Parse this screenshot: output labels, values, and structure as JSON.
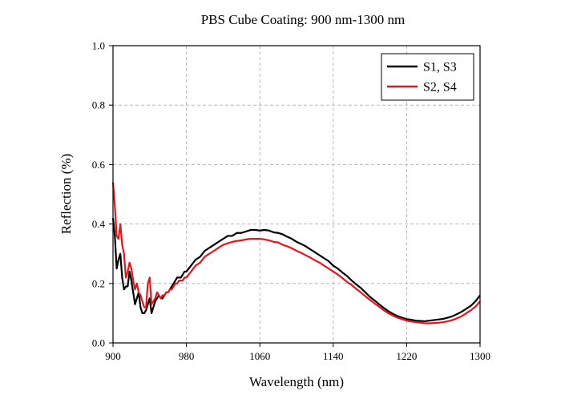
{
  "chart_data": {
    "type": "line",
    "title": "PBS Cube Coating: 900 nm-1300 nm",
    "xlabel": "Wavelength (nm)",
    "ylabel": "Reflection (%)",
    "xlim": [
      900,
      1300
    ],
    "ylim": [
      0,
      1.0
    ],
    "xticks": [
      900,
      980,
      1060,
      1140,
      1220,
      1300
    ],
    "xtick_labels": [
      "900",
      "980",
      "1060",
      "1140",
      "1220",
      "1300"
    ],
    "yticks": [
      0,
      0.2,
      0.4,
      0.6,
      0.8,
      1.0
    ],
    "ytick_labels": [
      "0.0",
      "0.2",
      "0.4",
      "0.6",
      "0.8",
      "1.0"
    ],
    "grid": true,
    "legend_position": "top-right",
    "series": [
      {
        "name": "S1, S3",
        "color": "#000000",
        "x": [
          900,
          902,
          904,
          906,
          908,
          910,
          912,
          914,
          916,
          918,
          920,
          922,
          924,
          926,
          928,
          930,
          932,
          934,
          936,
          938,
          940,
          942,
          944,
          946,
          948,
          950,
          952,
          954,
          956,
          958,
          960,
          962,
          964,
          966,
          968,
          970,
          972,
          974,
          976,
          978,
          980,
          985,
          990,
          995,
          1000,
          1005,
          1010,
          1015,
          1020,
          1025,
          1030,
          1035,
          1040,
          1045,
          1050,
          1055,
          1060,
          1065,
          1070,
          1075,
          1080,
          1085,
          1090,
          1095,
          1100,
          1105,
          1110,
          1115,
          1120,
          1125,
          1130,
          1135,
          1140,
          1145,
          1150,
          1155,
          1160,
          1165,
          1170,
          1175,
          1180,
          1185,
          1190,
          1195,
          1200,
          1205,
          1210,
          1215,
          1220,
          1225,
          1230,
          1235,
          1240,
          1245,
          1250,
          1255,
          1260,
          1265,
          1270,
          1275,
          1280,
          1285,
          1290,
          1295,
          1300
        ],
        "values": [
          0.42,
          0.36,
          0.25,
          0.28,
          0.3,
          0.22,
          0.18,
          0.19,
          0.19,
          0.24,
          0.21,
          0.17,
          0.13,
          0.15,
          0.17,
          0.12,
          0.1,
          0.1,
          0.11,
          0.13,
          0.15,
          0.1,
          0.12,
          0.14,
          0.15,
          0.16,
          0.15,
          0.15,
          0.16,
          0.17,
          0.17,
          0.18,
          0.19,
          0.2,
          0.21,
          0.22,
          0.22,
          0.22,
          0.23,
          0.24,
          0.24,
          0.26,
          0.28,
          0.29,
          0.31,
          0.32,
          0.33,
          0.34,
          0.35,
          0.36,
          0.36,
          0.37,
          0.37,
          0.375,
          0.38,
          0.38,
          0.378,
          0.38,
          0.378,
          0.372,
          0.37,
          0.365,
          0.357,
          0.35,
          0.34,
          0.333,
          0.325,
          0.315,
          0.305,
          0.295,
          0.285,
          0.275,
          0.26,
          0.25,
          0.237,
          0.225,
          0.21,
          0.197,
          0.185,
          0.17,
          0.155,
          0.143,
          0.13,
          0.118,
          0.107,
          0.098,
          0.09,
          0.085,
          0.08,
          0.078,
          0.075,
          0.074,
          0.073,
          0.075,
          0.077,
          0.079,
          0.081,
          0.085,
          0.09,
          0.097,
          0.105,
          0.115,
          0.125,
          0.14,
          0.16
        ]
      },
      {
        "name": "S2, S4",
        "color": "#e8141c",
        "x": [
          900,
          902,
          904,
          906,
          908,
          910,
          912,
          914,
          916,
          918,
          920,
          922,
          924,
          926,
          928,
          930,
          932,
          934,
          936,
          938,
          940,
          942,
          944,
          946,
          948,
          950,
          952,
          954,
          956,
          958,
          960,
          962,
          964,
          966,
          968,
          970,
          972,
          974,
          976,
          978,
          980,
          985,
          990,
          995,
          1000,
          1005,
          1010,
          1015,
          1020,
          1025,
          1030,
          1035,
          1040,
          1045,
          1050,
          1055,
          1060,
          1065,
          1070,
          1075,
          1080,
          1085,
          1090,
          1095,
          1100,
          1105,
          1110,
          1115,
          1120,
          1125,
          1130,
          1135,
          1140,
          1145,
          1150,
          1155,
          1160,
          1165,
          1170,
          1175,
          1180,
          1185,
          1190,
          1195,
          1200,
          1205,
          1210,
          1215,
          1220,
          1225,
          1230,
          1235,
          1240,
          1245,
          1250,
          1255,
          1260,
          1265,
          1270,
          1275,
          1280,
          1285,
          1290,
          1295,
          1300
        ],
        "values": [
          0.54,
          0.46,
          0.36,
          0.35,
          0.4,
          0.33,
          0.3,
          0.22,
          0.24,
          0.27,
          0.25,
          0.21,
          0.18,
          0.2,
          0.17,
          0.16,
          0.14,
          0.12,
          0.12,
          0.2,
          0.22,
          0.13,
          0.14,
          0.15,
          0.17,
          0.16,
          0.15,
          0.16,
          0.16,
          0.17,
          0.17,
          0.18,
          0.18,
          0.19,
          0.2,
          0.2,
          0.21,
          0.21,
          0.21,
          0.22,
          0.22,
          0.24,
          0.26,
          0.27,
          0.29,
          0.3,
          0.31,
          0.32,
          0.33,
          0.335,
          0.34,
          0.343,
          0.345,
          0.348,
          0.35,
          0.35,
          0.35,
          0.348,
          0.345,
          0.34,
          0.338,
          0.33,
          0.325,
          0.318,
          0.31,
          0.303,
          0.295,
          0.287,
          0.278,
          0.27,
          0.26,
          0.25,
          0.24,
          0.23,
          0.218,
          0.205,
          0.195,
          0.182,
          0.17,
          0.157,
          0.145,
          0.133,
          0.122,
          0.11,
          0.1,
          0.092,
          0.085,
          0.08,
          0.075,
          0.072,
          0.07,
          0.068,
          0.066,
          0.066,
          0.067,
          0.068,
          0.07,
          0.073,
          0.077,
          0.083,
          0.09,
          0.1,
          0.11,
          0.122,
          0.14
        ]
      }
    ]
  }
}
